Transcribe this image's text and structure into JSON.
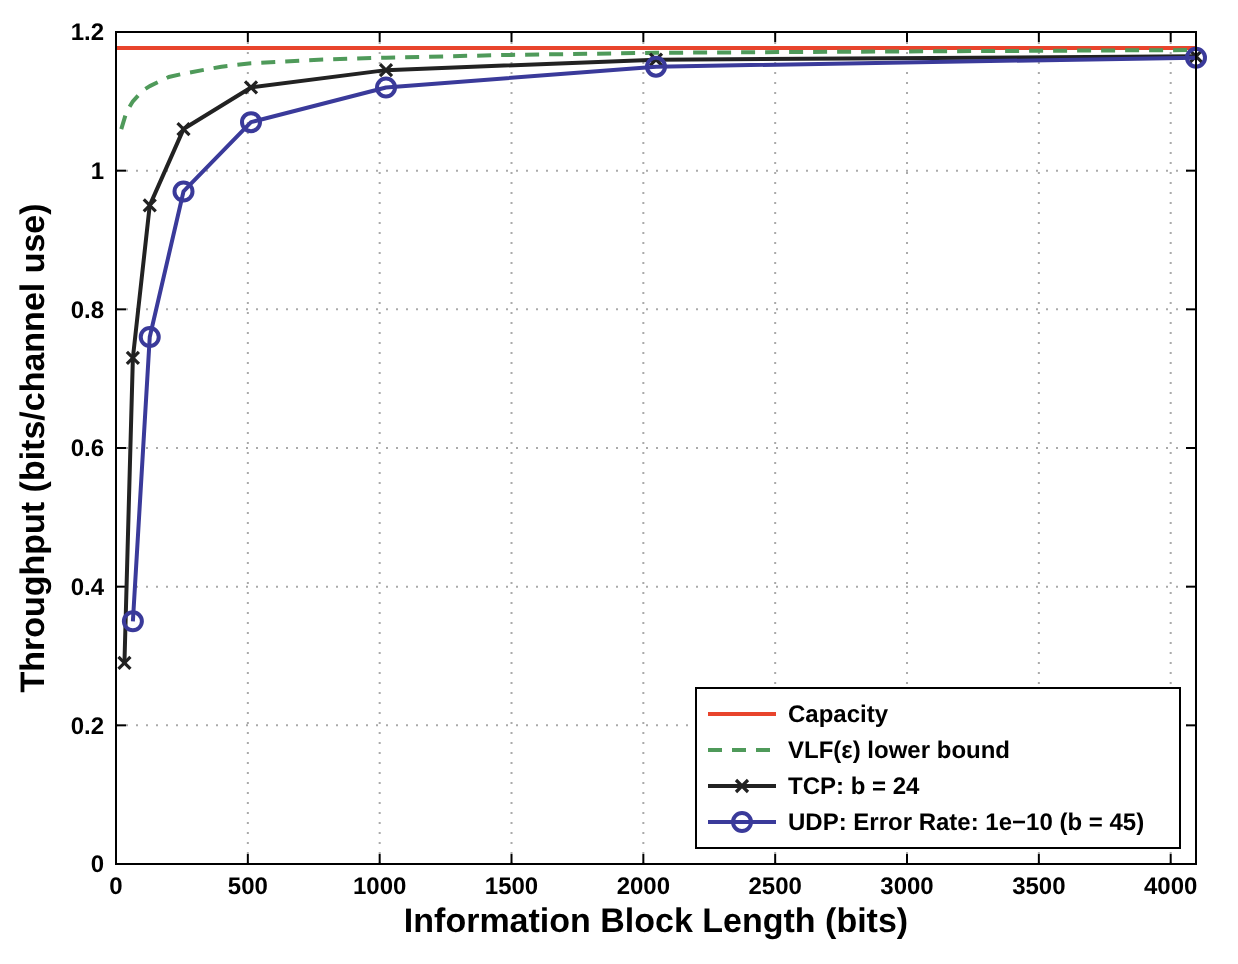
{
  "chart_data": {
    "type": "line",
    "xlabel": "Information Block Length (bits)",
    "ylabel": "Throughput (bits/channel use)",
    "xlim": [
      0,
      4096
    ],
    "ylim": [
      0,
      1.2
    ],
    "xticks": [
      0,
      500,
      1000,
      1500,
      2000,
      2500,
      3000,
      3500,
      4000
    ],
    "yticks": [
      0,
      0.2,
      0.4,
      0.6,
      0.8,
      1,
      1.2
    ],
    "grid": true,
    "legend": "bottom right",
    "series": [
      {
        "name": "Capacity",
        "color": "#e8442c",
        "x": [
          0,
          4096
        ],
        "values": [
          1.177,
          1.177
        ],
        "line_style": "solid",
        "marker": "none"
      },
      {
        "name": "VLF(ε) lower bound",
        "color": "#4f9a5a",
        "x": [
          20,
          40,
          64,
          100,
          128,
          200,
          256,
          400,
          512,
          768,
          1024,
          1500,
          2048,
          3000,
          4096
        ],
        "values": [
          1.06,
          1.085,
          1.1,
          1.115,
          1.122,
          1.135,
          1.14,
          1.15,
          1.155,
          1.16,
          1.163,
          1.167,
          1.17,
          1.172,
          1.174
        ],
        "line_style": "dashed",
        "marker": "none"
      },
      {
        "name": "TCP: b = 24",
        "color": "#222222",
        "x": [
          32,
          64,
          128,
          256,
          512,
          1024,
          2048,
          4096
        ],
        "values": [
          0.29,
          0.73,
          0.95,
          1.06,
          1.12,
          1.145,
          1.16,
          1.165
        ],
        "line_style": "solid",
        "marker": "cross"
      },
      {
        "name": "UDP: Error Rate: 1e−10 (b = 45)",
        "color": "#3a3a9a",
        "x": [
          64,
          128,
          256,
          512,
          1024,
          2048,
          4096
        ],
        "values": [
          0.35,
          0.76,
          0.97,
          1.07,
          1.12,
          1.15,
          1.163
        ],
        "line_style": "solid",
        "marker": "circle"
      }
    ]
  }
}
